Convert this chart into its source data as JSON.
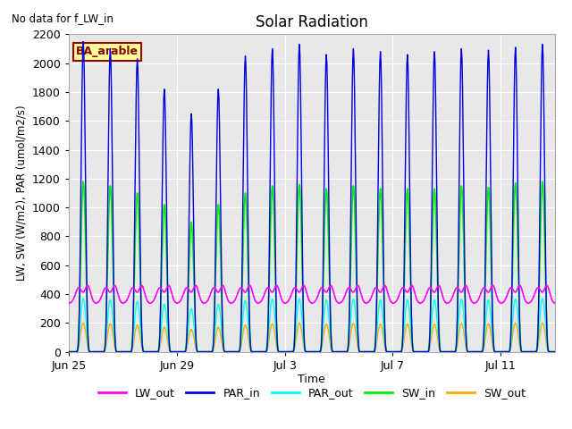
{
  "title": "Solar Radiation",
  "subtitle": "No data for f_LW_in",
  "xlabel": "Time",
  "ylabel": "LW, SW (W/m2), PAR (umol/m2/s)",
  "legend_labels": [
    "LW_out",
    "PAR_in",
    "PAR_out",
    "SW_in",
    "SW_out"
  ],
  "legend_colors": [
    "#ff00ff",
    "#0000dd",
    "#00ffff",
    "#00ee00",
    "#ffaa00"
  ],
  "box_label": "BA_arable",
  "box_facecolor": "#ffff99",
  "box_edgecolor": "#990000",
  "ylim": [
    0,
    2200
  ],
  "yticks": [
    0,
    200,
    400,
    600,
    800,
    1000,
    1200,
    1400,
    1600,
    1800,
    2000,
    2200
  ],
  "xtick_positions": [
    0,
    4,
    8,
    12,
    16
  ],
  "xtick_labels": [
    "Jun 25",
    "Jun 29",
    "Jul 3",
    "Jul 7",
    "Jul 11"
  ],
  "xlim": [
    0,
    18
  ],
  "colors": {
    "LW_out": "#ff00ff",
    "PAR_in": "#0000dd",
    "PAR_out": "#00ffff",
    "SW_in": "#00ee00",
    "SW_out": "#ffaa00"
  },
  "par_in_peaks": [
    2150,
    2100,
    2030,
    1820,
    1650,
    1820,
    2050,
    2100,
    2130,
    2060,
    2100,
    2080,
    2060,
    2080,
    2100,
    2090,
    2110,
    2130
  ],
  "sw_in_peaks": [
    1180,
    1150,
    1100,
    1020,
    900,
    1020,
    1100,
    1150,
    1160,
    1130,
    1150,
    1130,
    1130,
    1130,
    1150,
    1140,
    1170,
    1180
  ],
  "par_out_peaks": [
    370,
    360,
    350,
    330,
    300,
    330,
    355,
    365,
    370,
    360,
    365,
    360,
    360,
    360,
    365,
    360,
    365,
    370
  ],
  "sw_out_peaks": [
    200,
    195,
    185,
    170,
    155,
    170,
    185,
    195,
    200,
    193,
    197,
    193,
    193,
    193,
    197,
    195,
    200,
    200
  ],
  "lw_out_base": 355,
  "lw_out_day_peak": 490,
  "lw_out_min": 320,
  "n_days": 18,
  "dt_minutes": 30
}
